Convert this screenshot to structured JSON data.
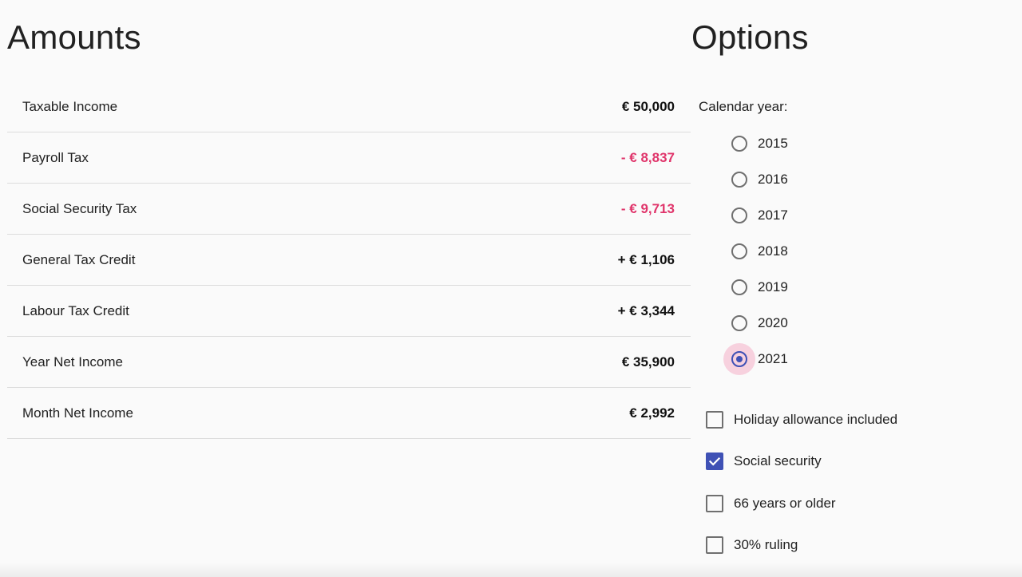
{
  "amounts": {
    "title": "Amounts",
    "rows": [
      {
        "label": "Taxable Income",
        "value": "€ 50,000",
        "tone": "neutral"
      },
      {
        "label": "Payroll Tax",
        "value": "- € 8,837",
        "tone": "negative"
      },
      {
        "label": "Social Security Tax",
        "value": "- € 9,713",
        "tone": "negative"
      },
      {
        "label": "General Tax Credit",
        "value": "+ € 1,106",
        "tone": "neutral"
      },
      {
        "label": "Labour Tax Credit",
        "value": "+ € 3,344",
        "tone": "neutral"
      },
      {
        "label": "Year Net Income",
        "value": "€ 35,900",
        "tone": "neutral"
      },
      {
        "label": "Month Net Income",
        "value": "€ 2,992",
        "tone": "neutral"
      }
    ]
  },
  "options": {
    "title": "Options",
    "calendar_year_label": "Calendar year:",
    "years": [
      {
        "label": "2015",
        "selected": false
      },
      {
        "label": "2016",
        "selected": false
      },
      {
        "label": "2017",
        "selected": false
      },
      {
        "label": "2018",
        "selected": false
      },
      {
        "label": "2019",
        "selected": false
      },
      {
        "label": "2020",
        "selected": false
      },
      {
        "label": "2021",
        "selected": true
      }
    ],
    "checkboxes": [
      {
        "label": "Holiday allowance included",
        "checked": false
      },
      {
        "label": "Social security",
        "checked": true
      },
      {
        "label": "66 years or older",
        "checked": false
      },
      {
        "label": "30% ruling",
        "checked": false
      }
    ]
  },
  "colors": {
    "accent": "#3f51b5",
    "negative": "#e0356b",
    "radio_focus": "#f8bbd0",
    "background": "#fafafa"
  },
  "icons": {
    "radio": "radio-button-icon",
    "checkbox": "checkbox-icon",
    "check": "check-icon"
  }
}
